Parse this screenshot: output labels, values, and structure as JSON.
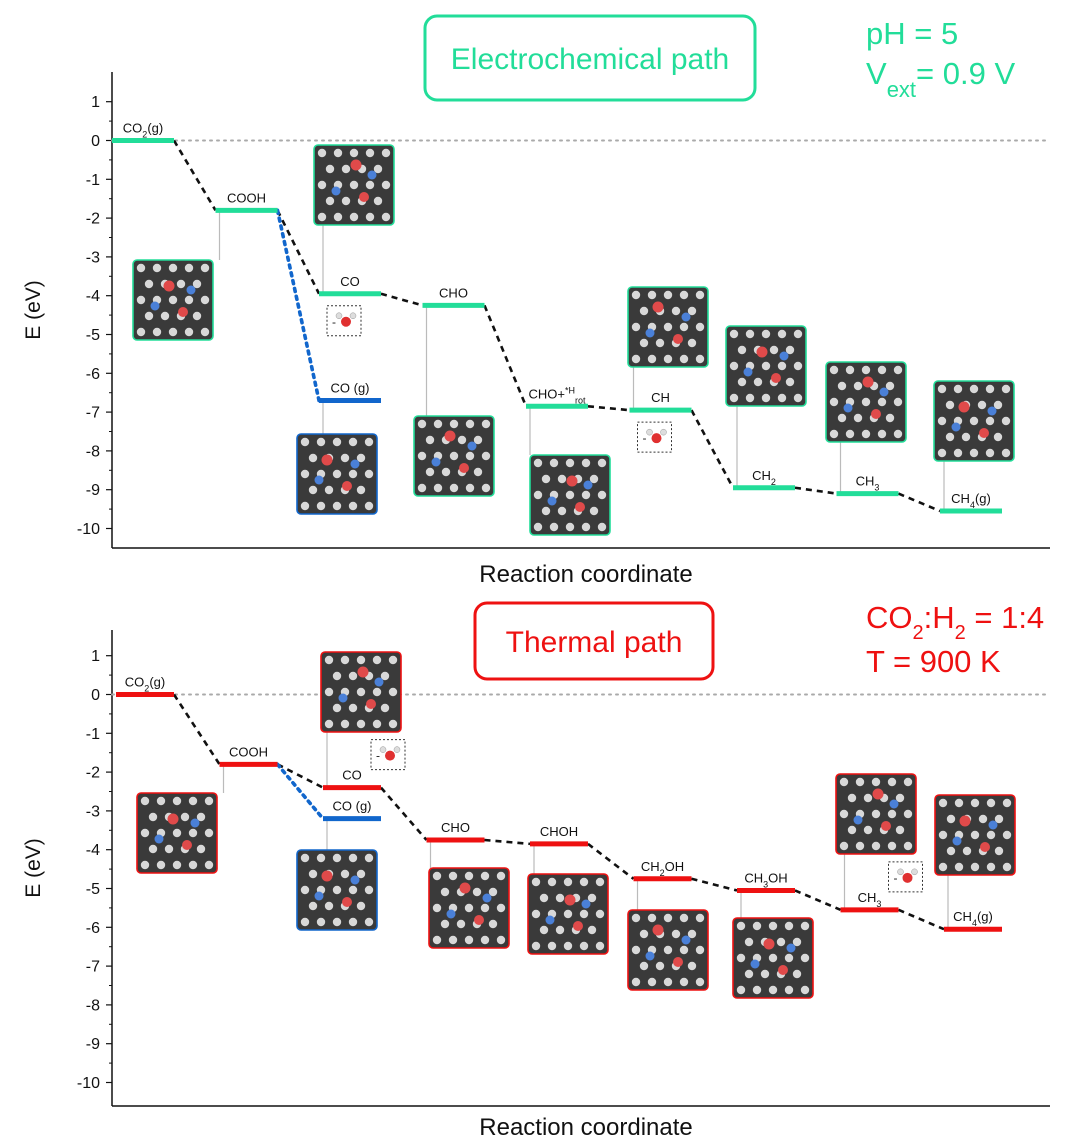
{
  "colors": {
    "electro": "#22dd99",
    "thermal": "#ee1111",
    "gas": "#1166cc",
    "connector": "#111111",
    "zero_line": "#aaaaaa"
  },
  "chart_data": [
    {
      "type": "line",
      "id": "electro",
      "title": "Electrochemical path",
      "conditions": [
        "pH = 5",
        "V",
        "ext",
        "= 0.9 V"
      ],
      "xlabel": "Reaction coordinate",
      "ylabel": "E (eV)",
      "ylim": [
        -10,
        1
      ],
      "yticks": [
        "1",
        "0",
        "-1",
        "-2",
        "-3",
        "-4",
        "-5",
        "-6",
        "-7",
        "-8",
        "-9",
        "-10"
      ],
      "zero_line": true,
      "levels": [
        {
          "label": "CO",
          "sub": "2",
          "tail": "(g)",
          "sup": "",
          "e": 0.0,
          "pos": 0,
          "path": "main",
          "has_snapshot": false
        },
        {
          "label": "COOH",
          "sub": "",
          "tail": "",
          "sup": "",
          "e": -1.8,
          "pos": 1,
          "path": "main",
          "has_snapshot": true
        },
        {
          "label": "CO",
          "sub": "",
          "tail": "",
          "sup": "",
          "e": -3.95,
          "pos": 2,
          "path": "main",
          "has_snapshot": true,
          "water_icon": true
        },
        {
          "label": "CO (g)",
          "sub": "",
          "tail": "",
          "sup": "",
          "e": -6.7,
          "pos": 2,
          "path": "gas",
          "has_snapshot": true
        },
        {
          "label": "CHO",
          "sub": "",
          "tail": "",
          "sup": "",
          "e": -4.25,
          "pos": 3,
          "path": "main",
          "has_snapshot": true
        },
        {
          "label": "CHO+",
          "sub": "rot",
          "tail": "",
          "sup": "*H",
          "e": -6.85,
          "pos": 4,
          "path": "main",
          "has_snapshot": true
        },
        {
          "label": "CH",
          "sub": "",
          "tail": "",
          "sup": "",
          "e": -6.95,
          "pos": 5,
          "path": "main",
          "has_snapshot": true,
          "water_icon": true
        },
        {
          "label": "CH",
          "sub": "2",
          "tail": "",
          "sup": "",
          "e": -8.95,
          "pos": 6,
          "path": "main",
          "has_snapshot": true
        },
        {
          "label": "CH",
          "sub": "3",
          "tail": "",
          "sup": "",
          "e": -9.1,
          "pos": 7,
          "path": "main",
          "has_snapshot": true
        },
        {
          "label": "CH",
          "sub": "4",
          "tail": "(g)",
          "sup": "",
          "e": -9.55,
          "pos": 8,
          "path": "main",
          "has_snapshot": true
        }
      ]
    },
    {
      "type": "line",
      "id": "thermal",
      "title": "Thermal path",
      "conditions": [
        "CO",
        "2",
        ":H",
        "2",
        " = 1:4",
        "T = 900 K"
      ],
      "xlabel": "Reaction coordinate",
      "ylabel": "E (eV)",
      "ylim": [
        -10,
        1
      ],
      "yticks": [
        "1",
        "0",
        "-1",
        "-2",
        "-3",
        "-4",
        "-5",
        "-6",
        "-7",
        "-8",
        "-9",
        "-10"
      ],
      "zero_line": true,
      "levels": [
        {
          "label": "CO",
          "sub": "2",
          "tail": "(g)",
          "sup": "",
          "e": 0.0,
          "pos": 0,
          "path": "main",
          "has_snapshot": false
        },
        {
          "label": "COOH",
          "sub": "",
          "tail": "",
          "sup": "",
          "e": -1.8,
          "pos": 1,
          "path": "main",
          "has_snapshot": true
        },
        {
          "label": "CO",
          "sub": "",
          "tail": "",
          "sup": "",
          "e": -2.4,
          "pos": 2,
          "path": "main",
          "has_snapshot": true,
          "water_icon": true
        },
        {
          "label": "CO (g)",
          "sub": "",
          "tail": "",
          "sup": "",
          "e": -3.2,
          "pos": 2,
          "path": "gas",
          "has_snapshot": true
        },
        {
          "label": "CHO",
          "sub": "",
          "tail": "",
          "sup": "",
          "e": -3.75,
          "pos": 3,
          "path": "main",
          "has_snapshot": true
        },
        {
          "label": "CHOH",
          "sub": "",
          "tail": "",
          "sup": "",
          "e": -3.85,
          "pos": 4,
          "path": "main",
          "has_snapshot": true
        },
        {
          "label": "CH",
          "sub": "2",
          "tail": "OH",
          "sup": "",
          "e": -4.75,
          "pos": 5,
          "path": "main",
          "has_snapshot": true
        },
        {
          "label": "CH",
          "sub": "3",
          "tail": "OH",
          "sup": "",
          "e": -5.05,
          "pos": 6,
          "path": "main",
          "has_snapshot": true
        },
        {
          "label": "CH",
          "sub": "3",
          "tail": "",
          "sup": "",
          "e": -5.55,
          "pos": 7,
          "path": "main",
          "has_snapshot": true,
          "water_icon": true
        },
        {
          "label": "CH",
          "sub": "4",
          "tail": "(g)",
          "sup": "",
          "e": -6.05,
          "pos": 8,
          "path": "main",
          "has_snapshot": true
        }
      ]
    }
  ]
}
